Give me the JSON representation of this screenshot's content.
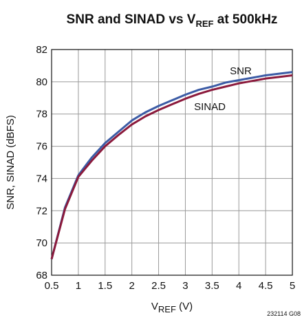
{
  "chart_data": {
    "type": "line",
    "title": [
      "SNR and SINAD vs V",
      "REF",
      " at 500kHz"
    ],
    "xlabel": [
      "V",
      "REF",
      " (V)"
    ],
    "ylabel": "SNR, SINAD (dBFS)",
    "footnote": "232114 G08",
    "x": [
      0.5,
      0.75,
      1,
      1.25,
      1.5,
      1.75,
      2,
      2.25,
      2.5,
      2.75,
      3,
      3.25,
      3.5,
      3.75,
      4,
      4.25,
      4.5,
      4.75,
      5
    ],
    "series": [
      {
        "name": "SNR",
        "color": "#3b5ba5",
        "values": [
          69,
          72.2,
          74.2,
          75.3,
          76.2,
          76.9,
          77.6,
          78.1,
          78.5,
          78.85,
          79.2,
          79.5,
          79.7,
          79.95,
          80.1,
          80.25,
          80.4,
          80.5,
          80.6
        ]
      },
      {
        "name": "SINAD",
        "color": "#8b1a3c",
        "values": [
          69,
          72.1,
          74.1,
          75.1,
          76.0,
          76.7,
          77.35,
          77.85,
          78.25,
          78.6,
          78.95,
          79.25,
          79.5,
          79.7,
          79.9,
          80.05,
          80.2,
          80.3,
          80.4
        ]
      }
    ],
    "xlim": [
      0.5,
      5
    ],
    "xticks": [
      0.5,
      1,
      1.5,
      2,
      2.5,
      3,
      3.5,
      4,
      4.5,
      5
    ],
    "ylim": [
      68,
      82
    ],
    "yticks": [
      68,
      70,
      72,
      74,
      76,
      78,
      80,
      82
    ],
    "grid": true
  }
}
